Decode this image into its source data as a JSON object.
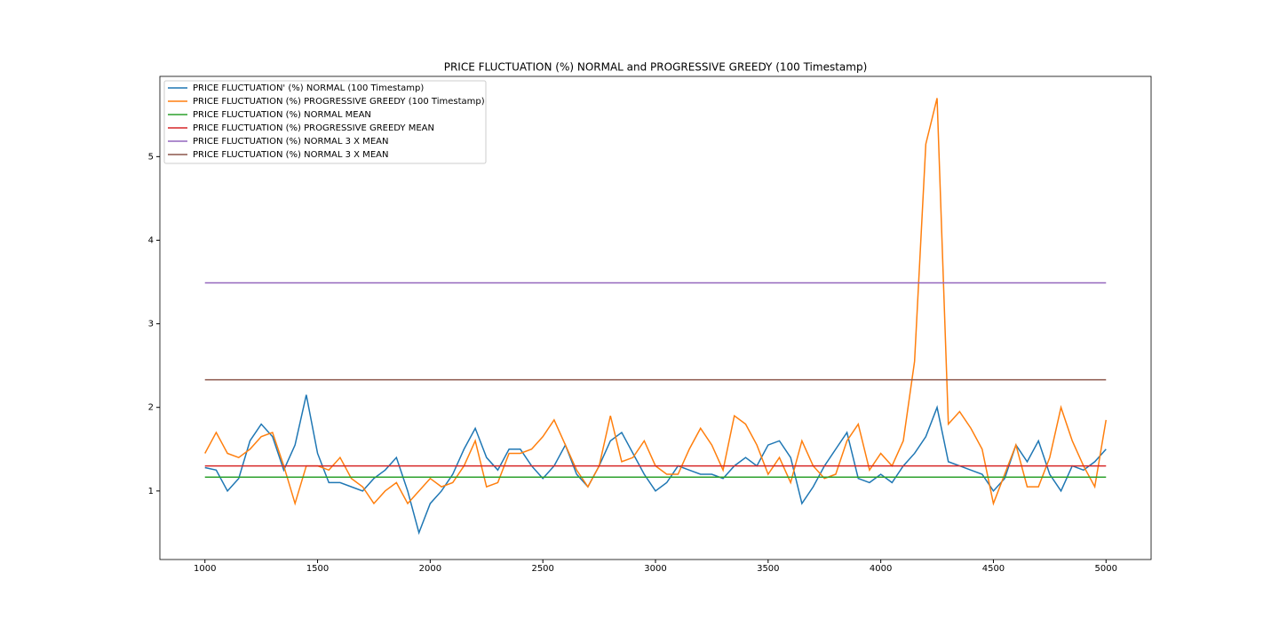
{
  "chart_data": {
    "type": "line",
    "title": "PRICE FLUCTUATION (%) NORMAL and PROGRESSIVE GREEDY (100 Timestamp)",
    "x": [
      1000,
      1050,
      1100,
      1150,
      1200,
      1250,
      1300,
      1350,
      1400,
      1450,
      1500,
      1550,
      1600,
      1650,
      1700,
      1750,
      1800,
      1850,
      1900,
      1950,
      2000,
      2050,
      2100,
      2150,
      2200,
      2250,
      2300,
      2350,
      2400,
      2450,
      2500,
      2550,
      2600,
      2650,
      2700,
      2750,
      2800,
      2850,
      2900,
      2950,
      3000,
      3050,
      3100,
      3150,
      3200,
      3250,
      3300,
      3350,
      3400,
      3450,
      3500,
      3550,
      3600,
      3650,
      3700,
      3750,
      3800,
      3850,
      3900,
      3950,
      4000,
      4050,
      4100,
      4150,
      4200,
      4250,
      4300,
      4350,
      4400,
      4450,
      4500,
      4550,
      4600,
      4650,
      4700,
      4750,
      4800,
      4850,
      4900,
      4950,
      5000
    ],
    "series": [
      {
        "name": "PRICE FLUCTUATION' (%) NORMAL (100 Timestamp)",
        "color": "#1f77b4",
        "values": [
          1.28,
          1.25,
          1.0,
          1.15,
          1.6,
          1.8,
          1.65,
          1.25,
          1.55,
          2.15,
          1.45,
          1.1,
          1.1,
          1.05,
          1.0,
          1.15,
          1.25,
          1.4,
          1.0,
          0.5,
          0.85,
          1.0,
          1.2,
          1.5,
          1.75,
          1.4,
          1.25,
          1.5,
          1.5,
          1.3,
          1.15,
          1.3,
          1.55,
          1.2,
          1.05,
          1.3,
          1.6,
          1.7,
          1.45,
          1.2,
          1.0,
          1.1,
          1.3,
          1.25,
          1.2,
          1.2,
          1.15,
          1.3,
          1.4,
          1.3,
          1.55,
          1.6,
          1.4,
          0.85,
          1.05,
          1.3,
          1.5,
          1.7,
          1.15,
          1.1,
          1.2,
          1.1,
          1.3,
          1.45,
          1.65,
          2.0,
          1.35,
          1.3,
          1.25,
          1.2,
          1.0,
          1.15,
          1.55,
          1.35,
          1.6,
          1.2,
          1.0,
          1.3,
          1.25,
          1.35,
          1.5
        ]
      },
      {
        "name": "PRICE FLUCTUATION (%) PROGRESSIVE GREEDY (100 Timestamp)",
        "color": "#ff7f0e",
        "values": [
          1.45,
          1.7,
          1.45,
          1.4,
          1.5,
          1.65,
          1.7,
          1.3,
          0.85,
          1.3,
          1.3,
          1.25,
          1.4,
          1.15,
          1.05,
          0.85,
          1.0,
          1.1,
          0.85,
          1.0,
          1.15,
          1.05,
          1.1,
          1.3,
          1.6,
          1.05,
          1.1,
          1.45,
          1.45,
          1.5,
          1.65,
          1.85,
          1.55,
          1.25,
          1.05,
          1.3,
          1.9,
          1.35,
          1.4,
          1.6,
          1.3,
          1.2,
          1.2,
          1.5,
          1.75,
          1.55,
          1.25,
          1.9,
          1.8,
          1.55,
          1.2,
          1.4,
          1.1,
          1.6,
          1.3,
          1.15,
          1.2,
          1.6,
          1.8,
          1.25,
          1.45,
          1.3,
          1.6,
          2.55,
          5.15,
          5.7,
          1.8,
          1.95,
          1.75,
          1.5,
          0.85,
          1.2,
          1.55,
          1.05,
          1.05,
          1.4,
          2.0,
          1.6,
          1.3,
          1.05,
          1.85
        ]
      },
      {
        "name": "PRICE FLUCTUATION (%) NORMAL MEAN",
        "color": "#2ca02c",
        "x": [
          1000,
          5000
        ],
        "values": [
          1.165,
          1.165
        ]
      },
      {
        "name": "PRICE FLUCTUATION (%) PROGRESSIVE GREEDY MEAN",
        "color": "#d62728",
        "x": [
          1000,
          5000
        ],
        "values": [
          1.3,
          1.3
        ]
      },
      {
        "name": "PRICE FLUCTUATION (%) NORMAL 3 X MEAN",
        "color": "#9467bd",
        "x": [
          1000,
          5000
        ],
        "values": [
          3.49,
          3.49
        ]
      },
      {
        "name": "PRICE FLUCTUATION (%) NORMAL 3 X MEAN",
        "color": "#8c564b",
        "x": [
          1000,
          5000
        ],
        "values": [
          2.33,
          2.33
        ]
      }
    ],
    "xlim": [
      800,
      5200
    ],
    "ylim": [
      0.18,
      5.96
    ],
    "xticks": [
      1000,
      1500,
      2000,
      2500,
      3000,
      3500,
      4000,
      4500,
      5000
    ],
    "yticks": [
      1,
      2,
      3,
      4,
      5
    ],
    "legend": "upper left"
  }
}
